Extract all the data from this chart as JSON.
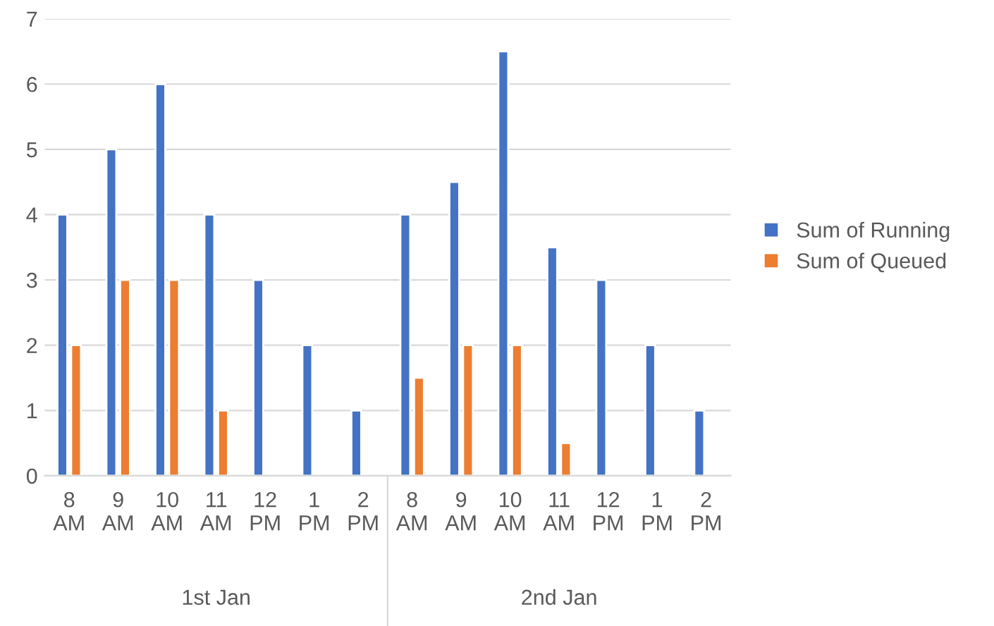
{
  "chart_data": {
    "type": "bar",
    "categories": [
      "8\nAM",
      "9\nAM",
      "10\nAM",
      "11\nAM",
      "12\nPM",
      "1\nPM",
      "2\nPM",
      "8\nAM",
      "9\nAM",
      "10\nAM",
      "11\nAM",
      "12\nPM",
      "1\nPM",
      "2\nPM"
    ],
    "series": [
      {
        "name": "Sum of Running",
        "color": "#4472c4",
        "values": [
          4,
          5,
          6,
          4,
          3,
          2,
          1,
          4,
          4.5,
          6.5,
          3.5,
          3,
          2,
          1
        ]
      },
      {
        "name": "Sum of Queued",
        "color": "#ed7d31",
        "values": [
          2,
          3,
          3,
          1,
          null,
          null,
          null,
          1.5,
          2,
          2,
          0.5,
          null,
          null,
          null
        ]
      }
    ],
    "annotations": [
      "1st Jan",
      "2nd Jan"
    ],
    "ylim": [
      0,
      7
    ],
    "yticks": [
      0,
      1,
      2,
      3,
      4,
      5,
      6,
      7
    ],
    "grid": "y",
    "legend": "right"
  }
}
